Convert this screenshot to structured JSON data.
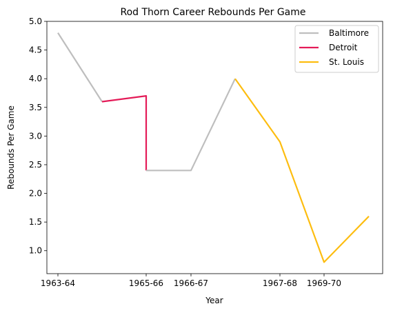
{
  "chart_data": {
    "type": "line",
    "title": "Rod Thorn Career Rebounds Per Game",
    "xlabel": "Year",
    "ylabel": "Rebounds Per Game",
    "x_tick_labels": [
      "1963-64",
      "1965-66",
      "1966-67",
      "1967-68",
      "1969-70"
    ],
    "y_ticks": [
      1.0,
      1.5,
      2.0,
      2.5,
      3.0,
      3.5,
      4.0,
      4.5,
      5.0
    ],
    "y_tick_labels": [
      "1.0",
      "1.5",
      "2.0",
      "2.5",
      "3.0",
      "3.5",
      "4.0",
      "4.5",
      "5.0"
    ],
    "ylim": [
      0.6,
      5.0
    ],
    "grid": false,
    "legend_position": "top-right",
    "points": [
      {
        "season": "1963-64",
        "rpg": 4.8
      },
      {
        "season": "1964-65",
        "rpg": 3.6
      },
      {
        "season": "1965-66",
        "rpg": 3.7
      },
      {
        "season": "1965-66",
        "rpg": 2.4
      },
      {
        "season": "1966-67",
        "rpg": 2.4
      },
      {
        "season": "1967-68",
        "rpg": 4.0
      },
      {
        "season": "1967-68",
        "rpg": 2.9
      },
      {
        "season": "1969-70",
        "rpg": 0.8
      },
      {
        "season": "1970-71",
        "rpg": 1.6
      }
    ],
    "series": [
      {
        "name": "Baltimore",
        "color": "#bebebe",
        "points": [
          0,
          1
        ]
      },
      {
        "name": "Detroit",
        "color": "#e41a57",
        "points": [
          1,
          2,
          3
        ]
      },
      {
        "name": "Baltimore",
        "color": "#bebebe",
        "points": [
          3,
          4,
          5
        ]
      },
      {
        "name": "St. Louis",
        "color": "#fdbd10",
        "points": [
          5,
          6,
          7,
          8
        ]
      }
    ],
    "legend": [
      {
        "name": "Baltimore",
        "color": "#bebebe"
      },
      {
        "name": "Detroit",
        "color": "#e41a57"
      },
      {
        "name": "St. Louis",
        "color": "#fdbd10"
      }
    ]
  }
}
